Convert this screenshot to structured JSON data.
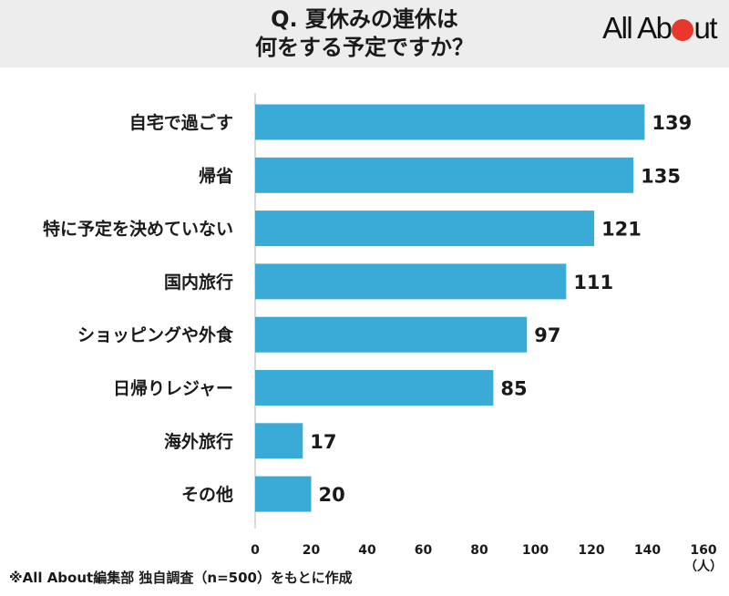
{
  "header": {
    "title_line1": "Q. 夏休みの連休は",
    "title_line2": "何をする予定ですか？",
    "logo_text_a": "All Ab",
    "logo_text_b": "ut"
  },
  "footnote": "※All About編集部 独自調査（n=500）をもとに作成",
  "colors": {
    "bar": "#3aabd6",
    "header_bg": "#ededed",
    "logo_accent": "#e8382d"
  },
  "chart_data": {
    "type": "bar",
    "orientation": "horizontal",
    "title": "Q. 夏休みの連休は何をする予定ですか？",
    "categories": [
      "自宅で過ごす",
      "帰省",
      "特に予定を決めていない",
      "国内旅行",
      "ショッピングや外食",
      "日帰りレジャー",
      "海外旅行",
      "その他"
    ],
    "values": [
      139,
      135,
      121,
      111,
      97,
      85,
      17,
      20
    ],
    "xlim": [
      0,
      160
    ],
    "xticks": [
      0,
      20,
      40,
      60,
      80,
      100,
      120,
      140,
      160
    ],
    "unit_label": "（人）",
    "grid": false,
    "legend": "none"
  }
}
